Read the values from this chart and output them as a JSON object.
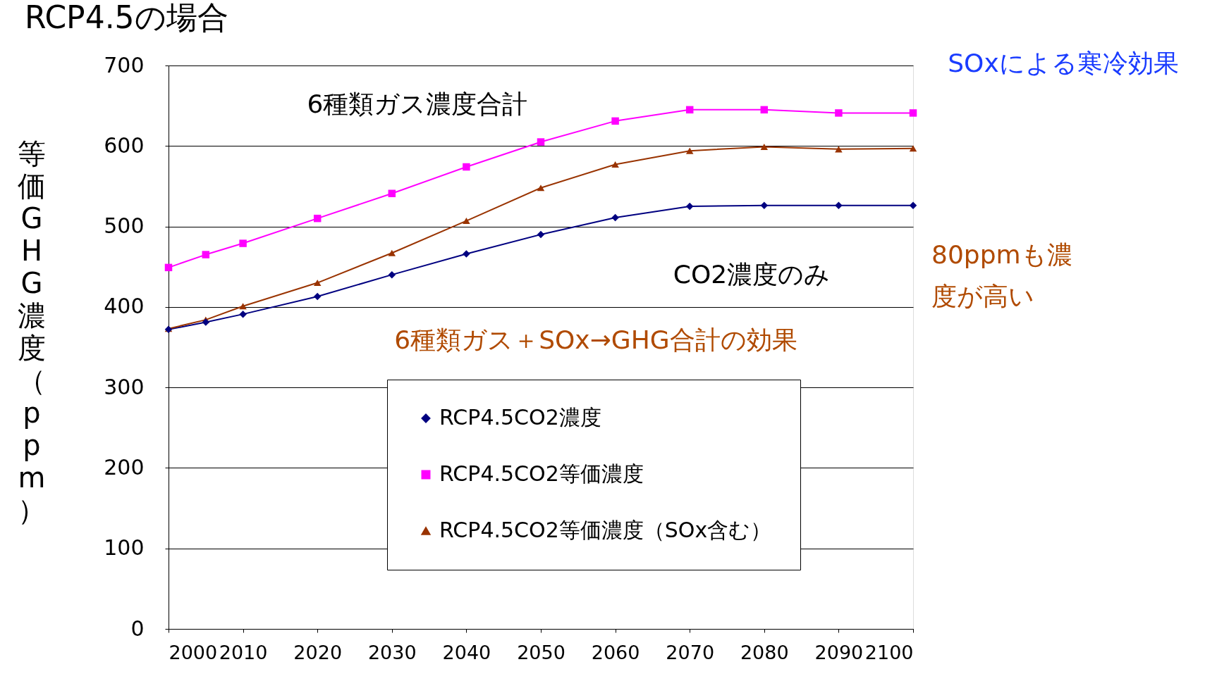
{
  "chart_data": {
    "type": "line",
    "title": "RCP4.5の場合",
    "ylabel": "等価GHG濃度（ppm）",
    "x": [
      2000,
      2005,
      2010,
      2020,
      2030,
      2040,
      2050,
      2060,
      2070,
      2080,
      2090,
      2100
    ],
    "series": [
      {
        "name": "RCP4.5CO2濃度",
        "color": "#000080",
        "marker": "diamond",
        "values": [
          372,
          381,
          391,
          413,
          440,
          466,
          490,
          511,
          525,
          526,
          526,
          526
        ]
      },
      {
        "name": "RCP4.5CO2等価濃度",
        "color": "#ff00ff",
        "marker": "square",
        "values": [
          449,
          465,
          479,
          510,
          541,
          574,
          605,
          631,
          645,
          645,
          641,
          641
        ]
      },
      {
        "name": "RCP4.5CO2等価濃度（SOx含む）",
        "color": "#993300",
        "marker": "triangle",
        "values": [
          373,
          384,
          401,
          430,
          467,
          507,
          548,
          577,
          594,
          599,
          596,
          597
        ]
      }
    ],
    "xlim": [
      2000,
      2100
    ],
    "xticks": [
      2000,
      2010,
      2020,
      2030,
      2040,
      2050,
      2060,
      2070,
      2080,
      2090,
      2100
    ],
    "ylim": [
      0,
      700
    ],
    "yticks": [
      0,
      100,
      200,
      300,
      400,
      500,
      600,
      700
    ],
    "grid": "y",
    "legend": "bottom",
    "line_style": "solid",
    "annotations": [
      "6種類ガス濃度合計",
      "CO2濃度のみ",
      "6種類ガス＋SOx→GHG合計の効果",
      "SOxによる寒冷効果",
      "80ppmも濃",
      "度が高い"
    ]
  }
}
